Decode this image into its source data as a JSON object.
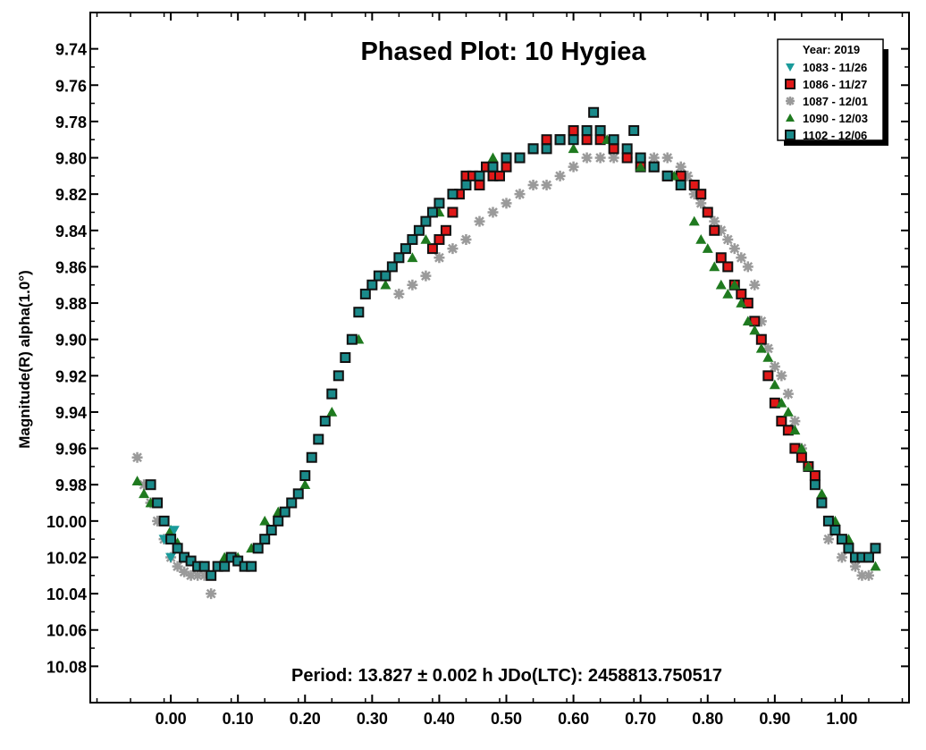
{
  "chart_data": {
    "type": "scatter",
    "title": "Phased Plot: 10 Hygiea",
    "ylabel": "Magnitude(R) alpha(1.0°)",
    "xlabel": "",
    "period_text": "Period: 13.827 ± 0.002 h  JDo(LTC): 2458813.750517",
    "xlim": [
      -0.12,
      1.1
    ],
    "ylim": [
      10.1,
      9.72
    ],
    "y_inverted": true,
    "grid": false,
    "legend_position": "top-right",
    "xticks": [
      0.0,
      0.1,
      0.2,
      0.3,
      0.4,
      0.5,
      0.6,
      0.7,
      0.8,
      0.9,
      1.0
    ],
    "xtick_labels": [
      "0.00",
      "0.10",
      "0.20",
      "0.30",
      "0.40",
      "0.50",
      "0.60",
      "0.70",
      "0.80",
      "0.90",
      "1.00"
    ],
    "yticks": [
      9.74,
      9.76,
      9.78,
      9.8,
      9.82,
      9.84,
      9.86,
      9.88,
      9.9,
      9.92,
      9.94,
      9.96,
      9.98,
      10.0,
      10.02,
      10.04,
      10.06,
      10.08
    ],
    "ytick_labels": [
      "9.74",
      "9.76",
      "9.78",
      "9.80",
      "9.82",
      "9.84",
      "9.86",
      "9.88",
      "9.90",
      "9.92",
      "9.94",
      "9.96",
      "9.98",
      "10.00",
      "10.02",
      "10.04",
      "10.06",
      "10.08"
    ],
    "legend_title": "Year: 2019",
    "series": [
      {
        "name": "1083 - 11/26",
        "marker": "triangle-down",
        "color": "#1a9b9b",
        "x": [
          -0.01,
          0.0,
          0.005,
          0.01
        ],
        "y": [
          10.01,
          10.02,
          10.005,
          10.015
        ]
      },
      {
        "name": "1086 - 11/27",
        "marker": "square",
        "color": "#e01818",
        "x": [
          0.39,
          0.4,
          0.41,
          0.42,
          0.43,
          0.44,
          0.45,
          0.46,
          0.47,
          0.48,
          0.49,
          0.5,
          0.52,
          0.54,
          0.56,
          0.58,
          0.6,
          0.62,
          0.64,
          0.66,
          0.68,
          0.7,
          0.72,
          0.74,
          0.76,
          0.78,
          0.79,
          0.8,
          0.81,
          0.82,
          0.83,
          0.84,
          0.85,
          0.86,
          0.87,
          0.88,
          0.89,
          0.9,
          0.91,
          0.92,
          0.93,
          0.94,
          0.95,
          0.96
        ],
        "y": [
          9.85,
          9.845,
          9.84,
          9.83,
          9.82,
          9.81,
          9.81,
          9.815,
          9.805,
          9.81,
          9.81,
          9.805,
          9.8,
          9.795,
          9.79,
          9.79,
          9.785,
          9.79,
          9.79,
          9.795,
          9.8,
          9.805,
          9.805,
          9.81,
          9.81,
          9.815,
          9.82,
          9.83,
          9.84,
          9.855,
          9.86,
          9.87,
          9.875,
          9.88,
          9.89,
          9.9,
          9.92,
          9.935,
          9.945,
          9.95,
          9.96,
          9.965,
          9.97,
          9.975
        ]
      },
      {
        "name": "1087 - 12/01",
        "marker": "asterisk",
        "color": "#9a9a9a",
        "x": [
          -0.05,
          -0.04,
          -0.03,
          -0.02,
          -0.01,
          0.0,
          0.01,
          0.02,
          0.03,
          0.04,
          0.05,
          0.06,
          0.34,
          0.36,
          0.38,
          0.4,
          0.42,
          0.44,
          0.46,
          0.48,
          0.5,
          0.52,
          0.54,
          0.56,
          0.58,
          0.6,
          0.62,
          0.64,
          0.66,
          0.68,
          0.7,
          0.72,
          0.74,
          0.76,
          0.77,
          0.78,
          0.79,
          0.8,
          0.81,
          0.82,
          0.83,
          0.84,
          0.85,
          0.86,
          0.87,
          0.88,
          0.89,
          0.9,
          0.91,
          0.92,
          0.93,
          0.94,
          0.95,
          0.98,
          1.0,
          1.02,
          1.03,
          1.04
        ],
        "y": [
          9.965,
          9.98,
          9.99,
          10.0,
          10.01,
          10.02,
          10.025,
          10.028,
          10.03,
          10.03,
          10.03,
          10.04,
          9.875,
          9.87,
          9.865,
          9.855,
          9.85,
          9.845,
          9.835,
          9.83,
          9.825,
          9.82,
          9.815,
          9.815,
          9.81,
          9.805,
          9.8,
          9.8,
          9.8,
          9.8,
          9.8,
          9.8,
          9.8,
          9.805,
          9.81,
          9.82,
          9.825,
          9.83,
          9.835,
          9.84,
          9.845,
          9.85,
          9.855,
          9.86,
          9.87,
          9.89,
          9.905,
          9.915,
          9.92,
          9.93,
          9.945,
          9.96,
          9.97,
          10.01,
          10.02,
          10.025,
          10.03,
          10.03
        ]
      },
      {
        "name": "1090 - 12/03",
        "marker": "triangle-up",
        "color": "#1f7a1f",
        "x": [
          -0.05,
          -0.04,
          -0.03,
          0.0,
          0.01,
          0.02,
          0.08,
          0.1,
          0.12,
          0.14,
          0.16,
          0.2,
          0.24,
          0.28,
          0.32,
          0.36,
          0.38,
          0.4,
          0.42,
          0.44,
          0.46,
          0.48,
          0.5,
          0.52,
          0.6,
          0.65,
          0.7,
          0.75,
          0.78,
          0.79,
          0.8,
          0.81,
          0.82,
          0.83,
          0.84,
          0.85,
          0.86,
          0.87,
          0.88,
          0.89,
          0.9,
          0.91,
          0.92,
          0.93,
          0.94,
          0.95,
          0.97,
          0.99,
          1.01,
          1.03,
          1.05
        ],
        "y": [
          9.978,
          9.985,
          9.99,
          10.005,
          10.012,
          10.02,
          10.02,
          10.02,
          10.015,
          10.0,
          9.995,
          9.98,
          9.94,
          9.9,
          9.87,
          9.855,
          9.845,
          9.83,
          9.82,
          9.815,
          9.81,
          9.8,
          9.8,
          9.8,
          9.795,
          9.79,
          9.805,
          9.81,
          9.835,
          9.845,
          9.85,
          9.86,
          9.87,
          9.875,
          9.87,
          9.88,
          9.89,
          9.895,
          9.905,
          9.91,
          9.925,
          9.935,
          9.94,
          9.95,
          9.96,
          9.97,
          9.985,
          10.0,
          10.01,
          10.02,
          10.025
        ]
      },
      {
        "name": "1102 - 12/06",
        "marker": "square",
        "color": "#1a8a8a",
        "x": [
          -0.03,
          -0.02,
          -0.01,
          0.0,
          0.01,
          0.02,
          0.03,
          0.04,
          0.05,
          0.06,
          0.07,
          0.08,
          0.09,
          0.1,
          0.11,
          0.12,
          0.13,
          0.14,
          0.15,
          0.16,
          0.17,
          0.18,
          0.19,
          0.2,
          0.21,
          0.22,
          0.23,
          0.24,
          0.25,
          0.26,
          0.27,
          0.28,
          0.29,
          0.3,
          0.31,
          0.32,
          0.33,
          0.34,
          0.35,
          0.36,
          0.37,
          0.38,
          0.39,
          0.4,
          0.42,
          0.44,
          0.46,
          0.48,
          0.5,
          0.52,
          0.54,
          0.56,
          0.58,
          0.6,
          0.62,
          0.63,
          0.64,
          0.66,
          0.68,
          0.69,
          0.7,
          0.72,
          0.74,
          0.76,
          0.96,
          0.97,
          0.98,
          0.99,
          1.0,
          1.01,
          1.02,
          1.03,
          1.04,
          1.05
        ],
        "y": [
          9.98,
          9.99,
          10.0,
          10.01,
          10.015,
          10.02,
          10.022,
          10.025,
          10.025,
          10.03,
          10.025,
          10.025,
          10.02,
          10.022,
          10.025,
          10.025,
          10.015,
          10.01,
          10.005,
          10.0,
          9.995,
          9.99,
          9.985,
          9.975,
          9.965,
          9.955,
          9.945,
          9.93,
          9.92,
          9.91,
          9.9,
          9.885,
          9.875,
          9.87,
          9.865,
          9.865,
          9.86,
          9.855,
          9.85,
          9.845,
          9.84,
          9.835,
          9.83,
          9.825,
          9.82,
          9.815,
          9.81,
          9.805,
          9.8,
          9.8,
          9.795,
          9.795,
          9.79,
          9.79,
          9.785,
          9.775,
          9.785,
          9.79,
          9.795,
          9.785,
          9.8,
          9.805,
          9.81,
          9.815,
          9.98,
          9.99,
          10.0,
          10.005,
          10.01,
          10.015,
          10.02,
          10.02,
          10.02,
          10.015
        ]
      }
    ]
  }
}
